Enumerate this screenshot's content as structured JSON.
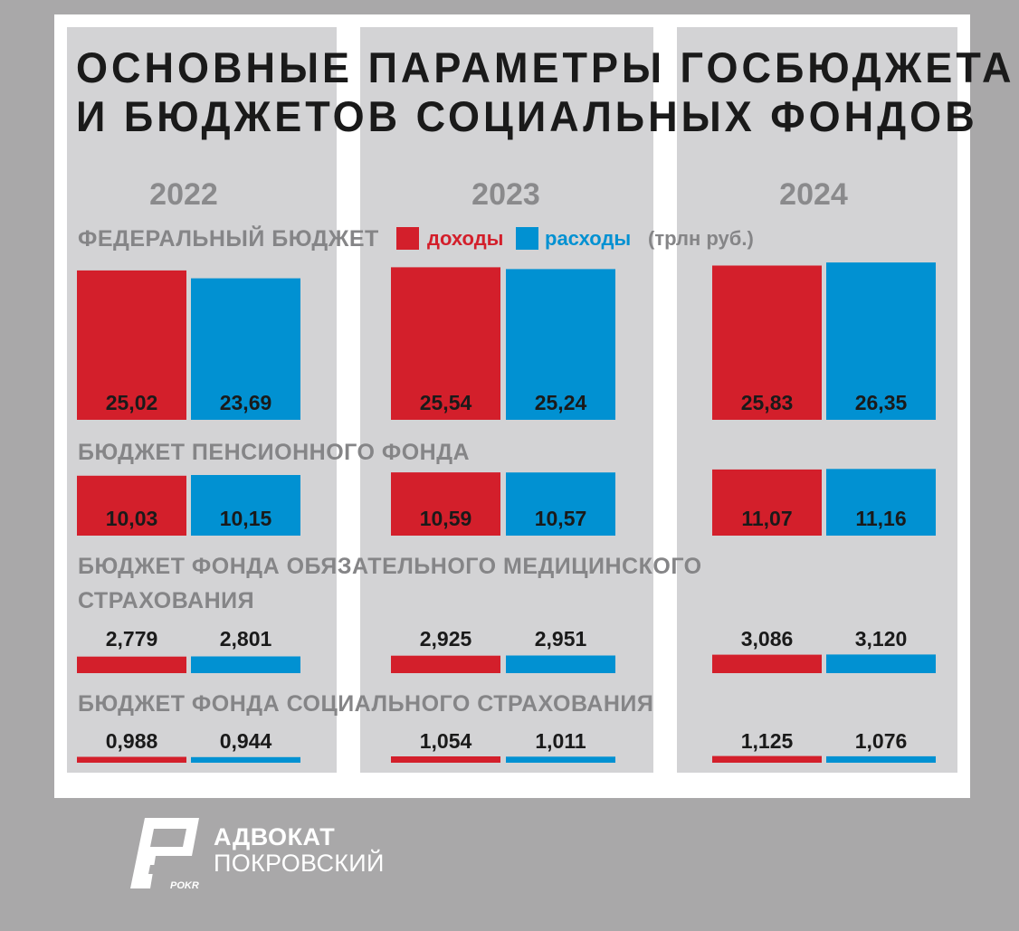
{
  "title_line1": "ОСНОВНЫЕ ПАРАМЕТРЫ ГОСБЮДЖЕТА",
  "title_line2": "И БЮДЖЕТОВ СОЦИАЛЬНЫХ ФОНДОВ",
  "legend": {
    "income": "доходы",
    "expense": "расходы",
    "unit": "(трлн руб.)"
  },
  "colors": {
    "income": "#d31f2b",
    "expense": "#0191d2",
    "label_text": "#1a1a1a"
  },
  "brand": {
    "line1": "АДВОКАТ",
    "line2": "ПОКРОВСКИЙ",
    "logo_text": "POKR"
  },
  "chart_data": {
    "type": "bar",
    "years": [
      "2022",
      "2023",
      "2024"
    ],
    "series_names": [
      "доходы",
      "расходы"
    ],
    "sections": [
      {
        "label_lines": [
          "ФЕДЕРАЛЬНЫЙ БЮДЖЕТ"
        ],
        "values": {
          "income": [
            25.02,
            25.54,
            25.83
          ],
          "expense": [
            23.69,
            25.24,
            26.35
          ]
        },
        "labels": {
          "income": [
            "25,02",
            "25,54",
            "25,83"
          ],
          "expense": [
            "23,69",
            "25,24",
            "26,35"
          ]
        }
      },
      {
        "label_lines": [
          "БЮДЖЕТ ПЕНСИОННОГО ФОНДА"
        ],
        "values": {
          "income": [
            10.03,
            10.59,
            11.07
          ],
          "expense": [
            10.15,
            10.57,
            11.16
          ]
        },
        "labels": {
          "income": [
            "10,03",
            "10,59",
            "11,07"
          ],
          "expense": [
            "10,15",
            "10,57",
            "11,16"
          ]
        }
      },
      {
        "label_lines": [
          "БЮДЖЕТ ФОНДА ОБЯЗАТЕЛЬНОГО МЕДИЦИНСКОГО",
          "СТРАХОВАНИЯ"
        ],
        "values": {
          "income": [
            2.779,
            2.925,
            3.086
          ],
          "expense": [
            2.801,
            2.951,
            3.12
          ]
        },
        "labels": {
          "income": [
            "2,779",
            "2,925",
            "3,086"
          ],
          "expense": [
            "2,801",
            "2,951",
            "3,120"
          ]
        }
      },
      {
        "label_lines": [
          "БЮДЖЕТ ФОНДА СОЦИАЛЬНОГО СТРАХОВАНИЯ"
        ],
        "values": {
          "income": [
            0.988,
            1.054,
            1.125
          ],
          "expense": [
            0.944,
            1.011,
            1.076
          ]
        },
        "labels": {
          "income": [
            "0,988",
            "1,054",
            "1,125"
          ],
          "expense": [
            "0,944",
            "1,011",
            "1,076"
          ]
        }
      }
    ]
  }
}
